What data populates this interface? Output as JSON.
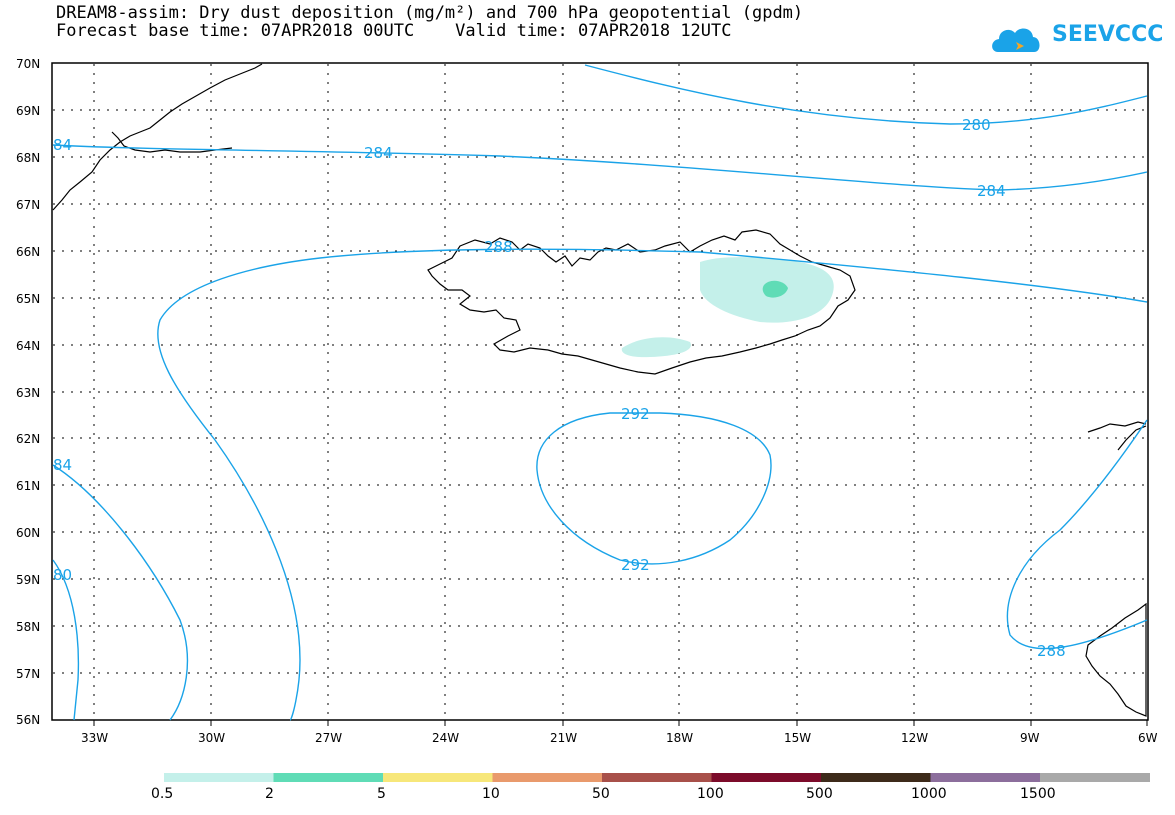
{
  "header": {
    "title_line1": "DREAM8-assim: Dry dust deposition (mg/m²) and 700 hPa geopotential (gpdm)",
    "title_line2": "Forecast base time: 07APR2018 00UTC    Valid time: 07APR2018 12UTC",
    "logo_text": "SEEVCCC",
    "logo_icon": "cloud-icon"
  },
  "colors": {
    "contour": "#1aa3e8",
    "coast": "#000000",
    "dust_0_5": "#c4f0ea",
    "dust_2": "#5fdcb6"
  },
  "map": {
    "lat_ticks": [
      "70N",
      "69N",
      "68N",
      "67N",
      "66N",
      "65N",
      "64N",
      "63N",
      "62N",
      "61N",
      "60N",
      "59N",
      "58N",
      "57N",
      "56N"
    ],
    "lon_ticks": [
      "33W",
      "30W",
      "27W",
      "24W",
      "21W",
      "18W",
      "15W",
      "12W",
      "9W",
      "6W"
    ],
    "contour_labels": [
      {
        "id": "c280a",
        "text": "280"
      },
      {
        "id": "c284a",
        "text": "284"
      },
      {
        "id": "c284b",
        "text": "284"
      },
      {
        "id": "c284c",
        "text": "84"
      },
      {
        "id": "c284d",
        "text": "84"
      },
      {
        "id": "c288a",
        "text": "288"
      },
      {
        "id": "c288b",
        "text": "288"
      },
      {
        "id": "c280b",
        "text": "80"
      },
      {
        "id": "c292a",
        "text": "292"
      },
      {
        "id": "c292b",
        "text": "292"
      }
    ]
  },
  "legend": {
    "labels": [
      "0.5",
      "2",
      "5",
      "10",
      "50",
      "100",
      "500",
      "1000",
      "1500"
    ],
    "colors": [
      "#c4f0ea",
      "#5fdcb6",
      "#f7e77a",
      "#e99a6c",
      "#a8504a",
      "#7c0b2a",
      "#3d2a1a",
      "#8c6e9c",
      "#a9a9a9"
    ]
  }
}
